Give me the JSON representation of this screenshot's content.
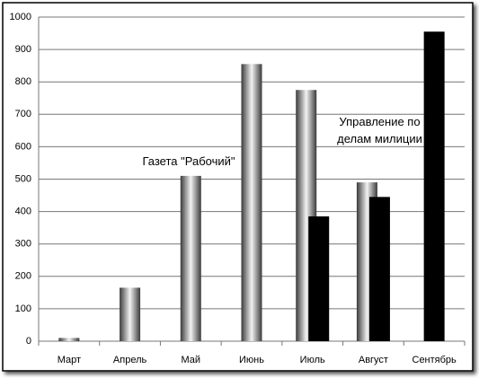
{
  "chart_data": {
    "type": "bar",
    "categories": [
      "Март",
      "Апрель",
      "Май",
      "Июнь",
      "Июль",
      "Август",
      "Сентябрь"
    ],
    "series": [
      {
        "name": "Газета \"Рабочий\"",
        "color": "#888888",
        "values": [
          10,
          165,
          510,
          855,
          775,
          490,
          null
        ]
      },
      {
        "name": "Управление по делам милиции",
        "color": "#000000",
        "values": [
          null,
          null,
          null,
          null,
          385,
          445,
          955
        ]
      }
    ],
    "ylim": [
      0,
      1000
    ],
    "yticks": [
      0,
      100,
      200,
      300,
      400,
      500,
      600,
      700,
      800,
      900,
      1000
    ],
    "grid": true
  }
}
